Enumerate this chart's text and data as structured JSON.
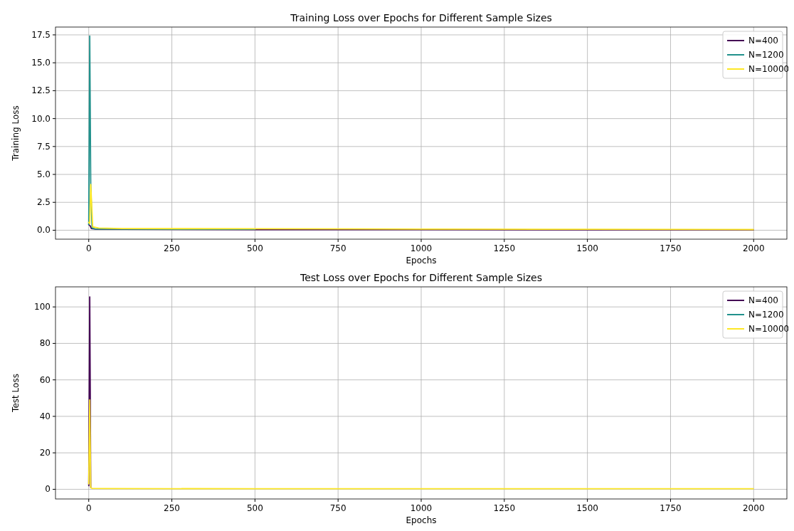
{
  "chart_data": [
    {
      "type": "line",
      "title": "Training Loss over Epochs for Different Sample Sizes",
      "xlabel": "Epochs",
      "ylabel": "Training Loss",
      "xlim": [
        -100,
        2100
      ],
      "ylim": [
        -0.8,
        18.2
      ],
      "xticks": [
        0,
        250,
        500,
        750,
        1000,
        1250,
        1500,
        1750,
        2000
      ],
      "yticks": [
        {
          "value": 0,
          "label": "0.0"
        },
        {
          "value": 2.5,
          "label": "2.5"
        },
        {
          "value": 5,
          "label": "5.0"
        },
        {
          "value": 7.5,
          "label": "7.5"
        },
        {
          "value": 10,
          "label": "10.0"
        },
        {
          "value": 12.5,
          "label": "12.5"
        },
        {
          "value": 15,
          "label": "15.0"
        },
        {
          "value": 17.5,
          "label": "17.5"
        }
      ],
      "grid": true,
      "legend": "top right",
      "series": [
        {
          "name": "N=400",
          "color": "#440154",
          "x": [
            0,
            4,
            8,
            20,
            100,
            500,
            1000,
            1500,
            1999
          ],
          "values": [
            0.5,
            0.4,
            0.15,
            0.1,
            0.08,
            0.06,
            0.05,
            0.04,
            0.03
          ]
        },
        {
          "name": "N=1200",
          "color": "#21918c",
          "x": [
            0,
            3,
            6,
            10,
            20,
            100,
            500
          ],
          "values": [
            0.5,
            17.4,
            4.1,
            0.2,
            0.12,
            0.1,
            0.08
          ]
        },
        {
          "name": "N=10000",
          "color": "#fde725",
          "x": [
            0,
            3,
            6,
            12,
            30,
            100,
            500,
            1000,
            1500,
            1999
          ],
          "values": [
            0.7,
            0.6,
            4.1,
            0.3,
            0.2,
            0.15,
            0.13,
            0.1,
            0.08,
            0.06
          ]
        }
      ]
    },
    {
      "type": "line",
      "title": "Test Loss over Epochs for Different Sample Sizes",
      "xlabel": "Epochs",
      "ylabel": "Test Loss",
      "xlim": [
        -100,
        2100
      ],
      "ylim": [
        -5.3,
        111
      ],
      "xticks": [
        0,
        250,
        500,
        750,
        1000,
        1250,
        1500,
        1750,
        2000
      ],
      "yticks": [
        0,
        20,
        40,
        60,
        80,
        100
      ],
      "grid": true,
      "legend": "top right",
      "series": [
        {
          "name": "N=400",
          "color": "#440154",
          "x": [
            0,
            3,
            6
          ],
          "values": [
            2,
            105.5,
            1
          ]
        },
        {
          "name": "N=1200",
          "color": "#21918c"
        },
        {
          "name": "N=10000",
          "color": "#fde725",
          "x": [
            0,
            3,
            6,
            10,
            50,
            500,
            1000,
            1500,
            1999
          ],
          "values": [
            3,
            49,
            1,
            0.5,
            0.4,
            0.3,
            0.3,
            0.3,
            0.3
          ]
        }
      ]
    }
  ]
}
